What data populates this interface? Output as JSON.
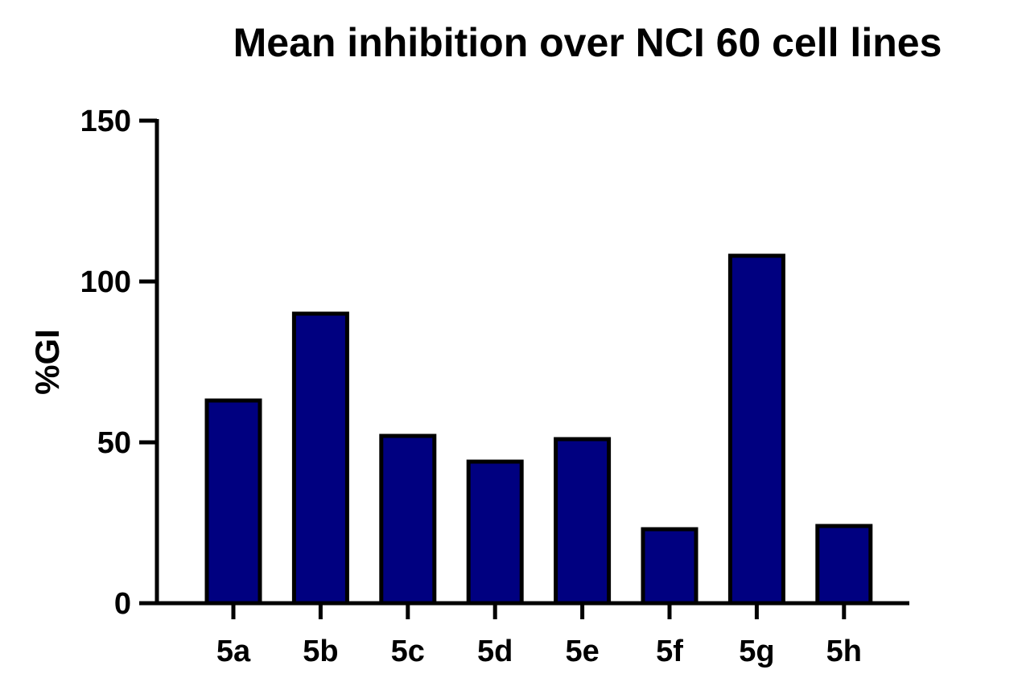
{
  "chart_data": {
    "type": "bar",
    "title": "Mean inhibition over NCI 60 cell lines",
    "xlabel": "",
    "ylabel": "%GI",
    "categories": [
      "5a",
      "5b",
      "5c",
      "5d",
      "5e",
      "5f",
      "5g",
      "5h"
    ],
    "values": [
      63,
      90,
      52,
      44,
      51,
      23,
      108,
      24
    ],
    "ylim": [
      0,
      150
    ],
    "yticks": [
      0,
      50,
      100,
      150
    ],
    "grid": false,
    "legend": "none",
    "bar_color": "#000080",
    "bar_edge_color": "#000000"
  }
}
